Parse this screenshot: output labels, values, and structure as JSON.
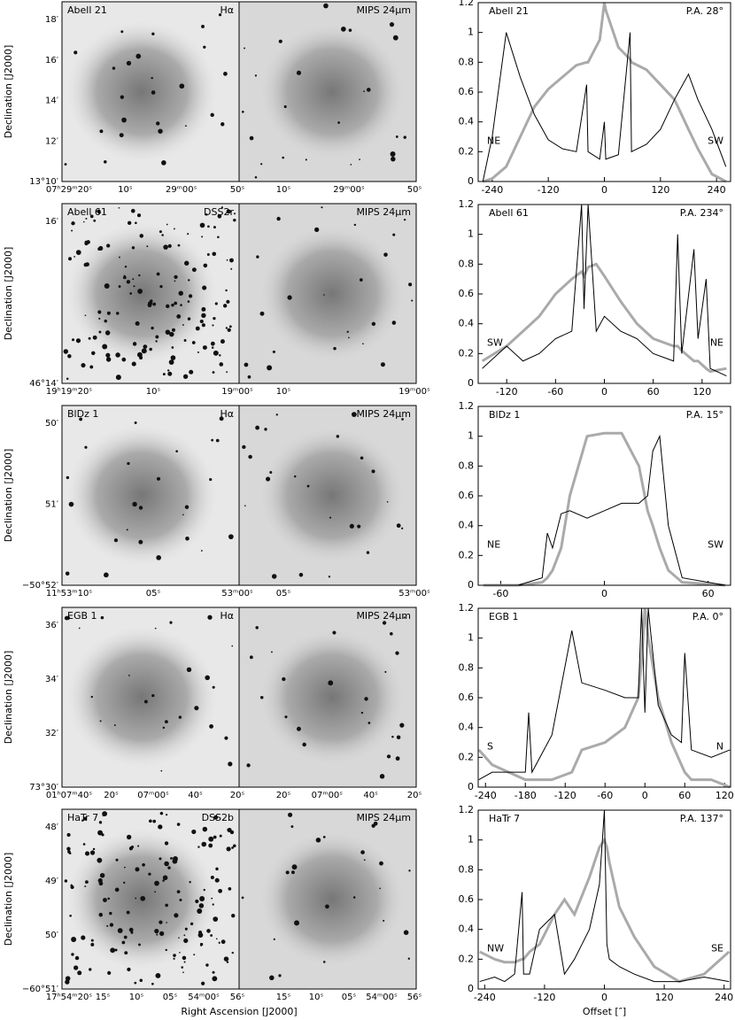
{
  "xlabel": "Right Ascension [J2000]",
  "ylabel": "Declination [J2000]",
  "images": [
    {
      "name": "Abell 21",
      "filter": "Hα",
      "mips": "MIPS 24μm",
      "dec_ticks": [
        "18′",
        "16′",
        "14′",
        "12′",
        "13°10′"
      ],
      "ra_ticks_left": [
        "07ʰ29ᵐ20ˢ",
        "10ˢ",
        "29ᵐ00ˢ",
        "50ˢ"
      ],
      "ra_ticks_right": [
        "10ˢ",
        "29ᵐ00ˢ",
        "50ˢ"
      ]
    },
    {
      "name": "Abell 61",
      "filter": "DSS2r",
      "mips": "MIPS 24μm",
      "dec_ticks": [
        "16′",
        "46°14′"
      ],
      "ra_ticks_left": [
        "19ʰ19ᵐ20ˢ",
        "10ˢ",
        "19ᵐ00ˢ"
      ],
      "ra_ticks_right": [
        "10ˢ",
        "19ᵐ00ˢ"
      ]
    },
    {
      "name": "BlDz 1",
      "filter": "Hα",
      "mips": "MIPS 24μm",
      "dec_ticks": [
        "50′",
        "51′",
        "−50°52′"
      ],
      "ra_ticks_left": [
        "11ʰ53ᵐ10ˢ",
        "05ˢ",
        "53ᵐ00ˢ"
      ],
      "ra_ticks_right": [
        "05ˢ",
        "53ᵐ00ˢ"
      ]
    },
    {
      "name": "EGB 1",
      "filter": "Hα",
      "mips": "MIPS 24μm",
      "dec_ticks": [
        "36′",
        "34′",
        "32′",
        "73°30′"
      ],
      "ra_ticks_left": [
        "01ʰ07ᵐ40ˢ",
        "20ˢ",
        "07ᵐ00ˢ",
        "40ˢ",
        "20ˢ"
      ],
      "ra_ticks_right": [
        "20ˢ",
        "07ᵐ00ˢ",
        "40ˢ",
        "20ˢ"
      ]
    },
    {
      "name": "HaTr 7",
      "filter": "DSS2b",
      "mips": "MIPS 24μm",
      "dec_ticks": [
        "48′",
        "49′",
        "50′",
        "−60°51′"
      ],
      "ra_ticks_left": [
        "17ʰ54ᵐ20ˢ",
        "15ˢ",
        "10ˢ",
        "05ˢ",
        "54ᵐ00ˢ",
        "56ˢ"
      ],
      "ra_ticks_right": [
        "15ˢ",
        "10ˢ",
        "05ˢ",
        "54ᵐ00ˢ",
        "56ˢ"
      ]
    }
  ],
  "chart_data": [
    {
      "type": "line",
      "title": "Abell 21",
      "position_angle": "P.A. 28°",
      "left_label": "NE",
      "right_label": "SW",
      "x": [
        -260,
        -240,
        -210,
        -180,
        -150,
        -120,
        -90,
        -60,
        -38,
        -35,
        -10,
        0,
        3,
        30,
        55,
        58,
        90,
        120,
        150,
        180,
        200,
        230,
        260
      ],
      "series": [
        {
          "color": "#000000",
          "values": [
            0,
            0.3,
            1.0,
            0.7,
            0.45,
            0.28,
            0.22,
            0.2,
            0.65,
            0.2,
            0.15,
            0.4,
            0.15,
            0.18,
            1.0,
            0.2,
            0.25,
            0.35,
            0.55,
            0.72,
            0.55,
            0.35,
            0.1
          ]
        },
        {
          "color": "#aaaaaa",
          "values": [
            0,
            0.02,
            0.1,
            0.3,
            0.5,
            0.62,
            0.7,
            0.78,
            0.8,
            0.8,
            0.95,
            1.2,
            1.15,
            0.9,
            0.82,
            0.8,
            0.75,
            0.65,
            0.55,
            0.35,
            0.22,
            0.05,
            0
          ]
        }
      ],
      "xlim": [
        -270,
        270
      ],
      "xticks": [
        -240,
        -120,
        0,
        120,
        240
      ],
      "ylim": [
        0,
        1.2
      ],
      "yticks": [
        0,
        0.2,
        0.4,
        0.6,
        0.8,
        1,
        1.2
      ]
    },
    {
      "type": "line",
      "title": "Abell 61",
      "position_angle": "P.A. 234°",
      "left_label": "SW",
      "right_label": "NE",
      "x": [
        -150,
        -120,
        -100,
        -80,
        -60,
        -40,
        -28,
        -25,
        -20,
        -10,
        0,
        20,
        40,
        60,
        85,
        90,
        95,
        110,
        115,
        125,
        130,
        150
      ],
      "series": [
        {
          "color": "#000000",
          "values": [
            0.1,
            0.25,
            0.15,
            0.2,
            0.3,
            0.35,
            1.2,
            0.5,
            1.2,
            0.35,
            0.45,
            0.35,
            0.3,
            0.2,
            0.15,
            1.0,
            0.2,
            0.9,
            0.3,
            0.7,
            0.1,
            0.05
          ]
        },
        {
          "color": "#aaaaaa",
          "values": [
            0.15,
            0.25,
            0.35,
            0.45,
            0.6,
            0.7,
            0.75,
            0.72,
            0.78,
            0.8,
            0.72,
            0.55,
            0.4,
            0.3,
            0.25,
            0.25,
            0.22,
            0.15,
            0.15,
            0.1,
            0.08,
            0.1
          ]
        }
      ],
      "xlim": [
        -155,
        155
      ],
      "xticks": [
        -120,
        -60,
        0,
        60,
        120
      ],
      "ylim": [
        0,
        1.2
      ],
      "yticks": [
        0,
        0.2,
        0.4,
        0.6,
        0.8,
        1,
        1.2
      ]
    },
    {
      "type": "line",
      "title": "BlDz 1",
      "position_angle": "P.A. 15°",
      "left_label": "NE",
      "right_label": "SW",
      "x": [
        -70,
        -50,
        -36,
        -33,
        -30,
        -25,
        -20,
        -10,
        0,
        10,
        20,
        25,
        28,
        32,
        37,
        45,
        70
      ],
      "series": [
        {
          "color": "#000000",
          "values": [
            0,
            0,
            0.05,
            0.35,
            0.25,
            0.48,
            0.5,
            0.45,
            0.5,
            0.55,
            0.55,
            0.6,
            0.9,
            1.0,
            0.4,
            0.05,
            0
          ]
        },
        {
          "color": "#aaaaaa",
          "values": [
            0,
            0,
            0.02,
            0.05,
            0.1,
            0.25,
            0.6,
            1.0,
            1.02,
            1.02,
            0.8,
            0.5,
            0.4,
            0.25,
            0.1,
            0.02,
            0
          ]
        }
      ],
      "xlim": [
        -73,
        73
      ],
      "xticks": [
        -60,
        0,
        60
      ],
      "ylim": [
        0,
        1.2
      ],
      "yticks": [
        0,
        0.2,
        0.4,
        0.6,
        0.8,
        1,
        1.2
      ]
    },
    {
      "type": "line",
      "title": "EGB 1",
      "position_angle": "P.A. 0°",
      "left_label": "S",
      "right_label": "N",
      "x": [
        -250,
        -230,
        -180,
        -175,
        -170,
        -140,
        -110,
        -95,
        -60,
        -30,
        -10,
        -5,
        0,
        5,
        20,
        40,
        55,
        60,
        70,
        100,
        128
      ],
      "series": [
        {
          "color": "#000000",
          "values": [
            0.05,
            0.1,
            0.1,
            0.5,
            0.1,
            0.35,
            1.05,
            0.7,
            0.65,
            0.6,
            0.6,
            1.2,
            0.5,
            1.2,
            0.55,
            0.35,
            0.3,
            0.9,
            0.25,
            0.2,
            0.25
          ]
        },
        {
          "color": "#aaaaaa",
          "values": [
            0.25,
            0.15,
            0.05,
            0.05,
            0.05,
            0.05,
            0.1,
            0.25,
            0.3,
            0.4,
            0.6,
            0.85,
            1.2,
            1.0,
            0.6,
            0.3,
            0.15,
            0.1,
            0.05,
            0.05,
            0
          ]
        }
      ],
      "xlim": [
        -251,
        129
      ],
      "xticks": [
        -240,
        -180,
        -120,
        -60,
        0,
        60,
        120
      ],
      "ylim": [
        0,
        1.2
      ],
      "yticks": [
        0,
        0.2,
        0.4,
        0.6,
        0.8,
        1,
        1.2
      ]
    },
    {
      "type": "line",
      "title": "HaTr 7",
      "position_angle": "P.A. 137°",
      "left_label": "NW",
      "right_label": "SE",
      "xlabel": "Offset [″]",
      "x": [
        -250,
        -220,
        -200,
        -180,
        -165,
        -162,
        -150,
        -130,
        -100,
        -80,
        -60,
        -30,
        -10,
        0,
        5,
        10,
        30,
        60,
        100,
        150,
        200,
        250
      ],
      "series": [
        {
          "color": "#000000",
          "values": [
            0.05,
            0.08,
            0.05,
            0.1,
            0.65,
            0.1,
            0.1,
            0.4,
            0.5,
            0.1,
            0.2,
            0.4,
            0.7,
            1.2,
            0.3,
            0.2,
            0.15,
            0.1,
            0.05,
            0.05,
            0.08,
            0.05
          ]
        },
        {
          "color": "#aaaaaa",
          "values": [
            0.25,
            0.2,
            0.18,
            0.18,
            0.2,
            0.2,
            0.25,
            0.3,
            0.5,
            0.6,
            0.5,
            0.75,
            0.95,
            1.0,
            0.95,
            0.85,
            0.55,
            0.35,
            0.15,
            0.05,
            0.1,
            0.25
          ]
        }
      ],
      "xlim": [
        -253,
        253
      ],
      "xticks": [
        -240,
        -120,
        0,
        120,
        240
      ],
      "ylim": [
        0,
        1.2
      ],
      "yticks": [
        0,
        0.2,
        0.4,
        0.6,
        0.8,
        1,
        1.2
      ]
    }
  ]
}
